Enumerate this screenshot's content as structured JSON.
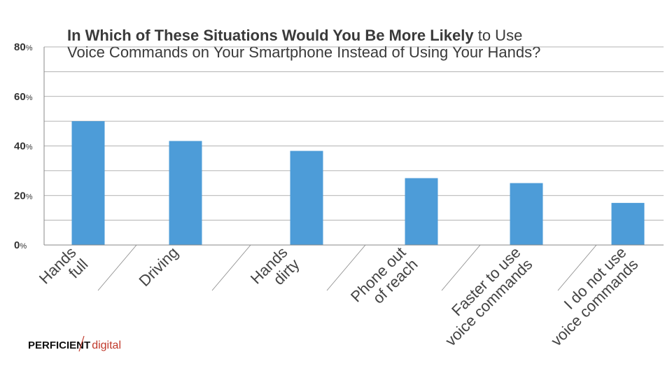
{
  "chart_data": {
    "type": "bar",
    "title_bold": "In Which of These Situations Would You Be More Likely",
    "title_rest": " to Use",
    "title_line2": "Voice Commands on Your Smartphone Instead of Using Your Hands?",
    "categories": [
      [
        "Hands",
        "full"
      ],
      [
        "Driving"
      ],
      [
        "Hands",
        "dirty"
      ],
      [
        "Phone out",
        "of reach"
      ],
      [
        "Faster to use",
        "voice commands"
      ],
      [
        "I do not use",
        "voice commands"
      ]
    ],
    "values": [
      50,
      42,
      38,
      27,
      25,
      17
    ],
    "y_ticks": [
      0,
      20,
      40,
      60,
      80
    ],
    "y_tick_unit": "%",
    "ylim": [
      0,
      80
    ],
    "grid": true,
    "bar_color": "#4d9cd8"
  },
  "logo": {
    "part1": "PERFICIENT",
    "part2": "digital"
  }
}
